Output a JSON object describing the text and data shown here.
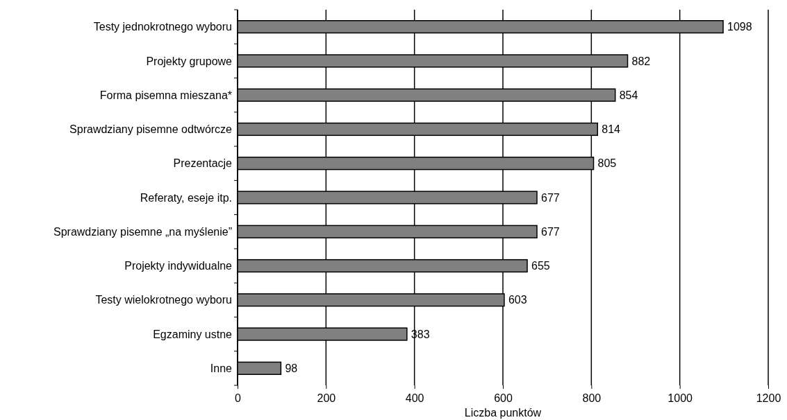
{
  "chart_data": {
    "type": "bar",
    "orientation": "horizontal",
    "xlabel": "Liczba punktów",
    "categories": [
      "Testy jednokrotnego wyboru",
      "Projekty grupowe",
      "Forma pisemna mieszana*",
      "Sprawdziany pisemne odtwórcze",
      "Prezentacje",
      "Referaty, eseje itp.",
      "Sprawdziany pisemne „na myślenie”",
      "Projekty indywidualne",
      "Testy wielokrotnego wyboru",
      "Egzaminy ustne",
      "Inne"
    ],
    "values": [
      1098,
      882,
      854,
      814,
      805,
      677,
      677,
      655,
      603,
      383,
      98
    ],
    "color": "#808080",
    "xlim": [
      0,
      1200
    ],
    "xticks": [
      0,
      200,
      400,
      600,
      800,
      1000,
      1200
    ],
    "grid": "x",
    "data_labels": true
  }
}
